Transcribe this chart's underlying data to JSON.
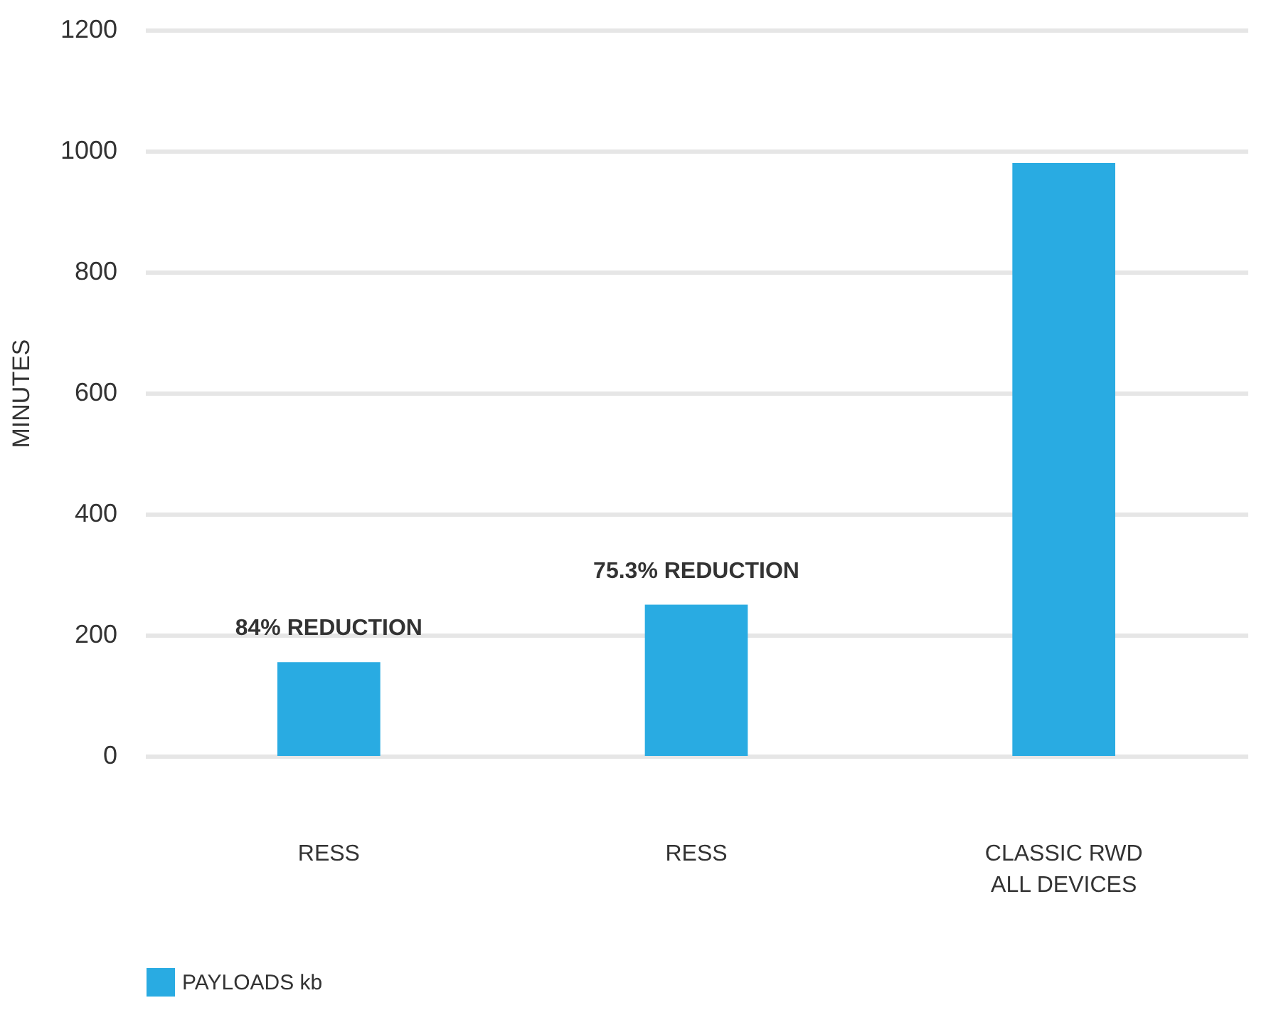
{
  "chart_data": {
    "type": "bar",
    "ylabel": "MINUTES",
    "categories": [
      "RESS",
      "RESS",
      "CLASSIC RWD\nALL DEVICES"
    ],
    "series": [
      {
        "name": "PAYLOADS kb",
        "color": "#29abe2",
        "values": [
          155,
          250,
          980
        ]
      }
    ],
    "ylim": [
      0,
      1200
    ],
    "yticks": [
      0,
      200,
      400,
      600,
      800,
      1000,
      1200
    ],
    "grid": "y",
    "legend": "bottom left",
    "annotations": [
      "84% REDUCTION",
      "75.3% REDUCTION"
    ]
  }
}
